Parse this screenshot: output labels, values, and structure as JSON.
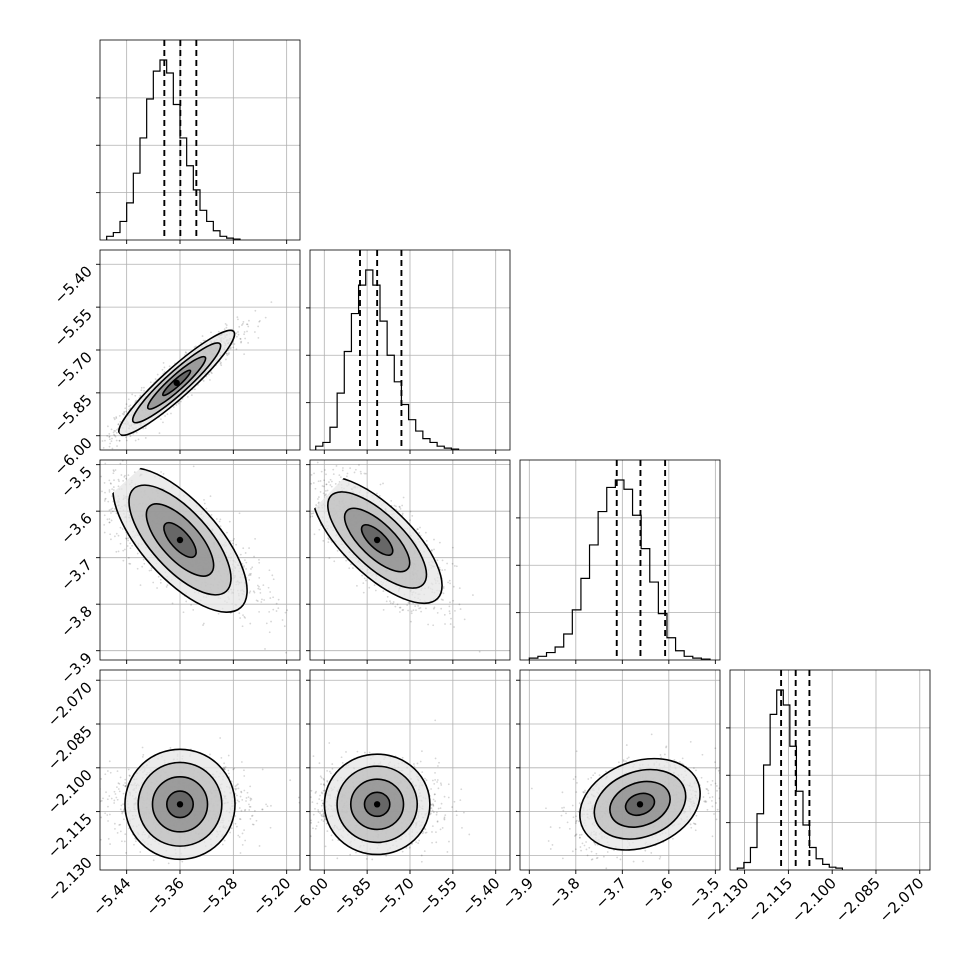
{
  "chart_data": {
    "type": "corner",
    "params": [
      {
        "id": "p1",
        "range": [
          -5.48,
          -5.18
        ],
        "ticks": [
          -5.44,
          -5.36,
          -5.28,
          -5.2
        ],
        "tick_labels": [
          "−5.44",
          "−5.36",
          "−5.28",
          "−5.20"
        ],
        "quantiles": [
          -5.3835,
          -5.3595,
          -5.3355
        ],
        "hist": {
          "start": -5.47,
          "step": 0.01,
          "counts": [
            0.02,
            0.04,
            0.1,
            0.2,
            0.36,
            0.55,
            0.76,
            0.91,
            0.97,
            0.9,
            0.73,
            0.55,
            0.4,
            0.27,
            0.16,
            0.1,
            0.05,
            0.02,
            0.01,
            0.005
          ]
        }
      },
      {
        "id": "p2",
        "range": [
          -6.05,
          -5.35
        ],
        "ticks": [
          -6.0,
          -5.85,
          -5.7,
          -5.55,
          -5.4
        ],
        "tick_labels": [
          "−6.00",
          "−5.85",
          "−5.70",
          "−5.55",
          "−5.40"
        ],
        "quantiles": [
          -5.875,
          -5.815,
          -5.73
        ],
        "hist": {
          "start": -6.03,
          "step": 0.025,
          "counts": [
            0.02,
            0.04,
            0.12,
            0.3,
            0.52,
            0.72,
            0.87,
            0.95,
            0.87,
            0.68,
            0.5,
            0.36,
            0.24,
            0.16,
            0.1,
            0.06,
            0.04,
            0.02,
            0.01,
            0.005
          ]
        }
      },
      {
        "id": "p3",
        "range": [
          -3.92,
          -3.49
        ],
        "ticks": [
          -3.9,
          -3.8,
          -3.7,
          -3.6,
          -3.5
        ],
        "tick_labels": [
          "−3.9",
          "−3.8",
          "−3.7",
          "−3.6",
          "−3.5"
        ],
        "quantiles": [
          -3.712,
          -3.661,
          -3.608
        ],
        "hist": {
          "start": -3.9,
          "step": 0.0185,
          "counts": [
            0.01,
            0.02,
            0.04,
            0.07,
            0.14,
            0.27,
            0.44,
            0.62,
            0.8,
            0.93,
            0.97,
            0.92,
            0.78,
            0.6,
            0.42,
            0.25,
            0.12,
            0.05,
            0.02,
            0.01,
            0.005
          ]
        }
      },
      {
        "id": "p4",
        "range": [
          -2.135,
          -2.0665
        ],
        "ticks": [
          -2.13,
          -2.115,
          -2.1,
          -2.085,
          -2.07
        ],
        "tick_labels": [
          "−2.130",
          "−2.115",
          "−2.100",
          "−2.085",
          "−2.070"
        ],
        "quantiles": [
          -2.1175,
          -2.1125,
          -2.1078
        ],
        "hist": {
          "start": -2.1325,
          "step": 0.00225,
          "counts": [
            0.01,
            0.04,
            0.12,
            0.3,
            0.56,
            0.83,
            0.96,
            0.88,
            0.66,
            0.42,
            0.24,
            0.12,
            0.06,
            0.03,
            0.015,
            0.01
          ]
        }
      }
    ],
    "pairs": [
      {
        "i": 1,
        "j": 0,
        "center": [
          -5.365,
          -5.815
        ],
        "sx": [
          0.036,
          0.07
        ],
        "angle": 42,
        "rho": 0.93
      },
      {
        "i": 2,
        "j": 0,
        "center": [
          -5.36,
          -3.662
        ],
        "sx": [
          0.045,
          0.055
        ],
        "angle": -48,
        "rho": -0.7
      },
      {
        "i": 2,
        "j": 1,
        "center": [
          -5.815,
          -3.662
        ],
        "sx": [
          0.09,
          0.055
        ],
        "angle": -44,
        "rho": -0.72
      },
      {
        "i": 3,
        "j": 0,
        "center": [
          -5.36,
          -2.1125
        ],
        "sx": [
          0.04,
          0.0055
        ],
        "angle": 0,
        "rho": 0.0
      },
      {
        "i": 3,
        "j": 1,
        "center": [
          -5.815,
          -2.1125
        ],
        "sx": [
          0.085,
          0.0055
        ],
        "angle": 0,
        "rho": -0.05
      },
      {
        "i": 3,
        "j": 2,
        "center": [
          -3.662,
          -2.1125
        ],
        "sx": [
          0.055,
          0.0055
        ],
        "angle": 20,
        "rho": 0.35
      }
    ]
  }
}
